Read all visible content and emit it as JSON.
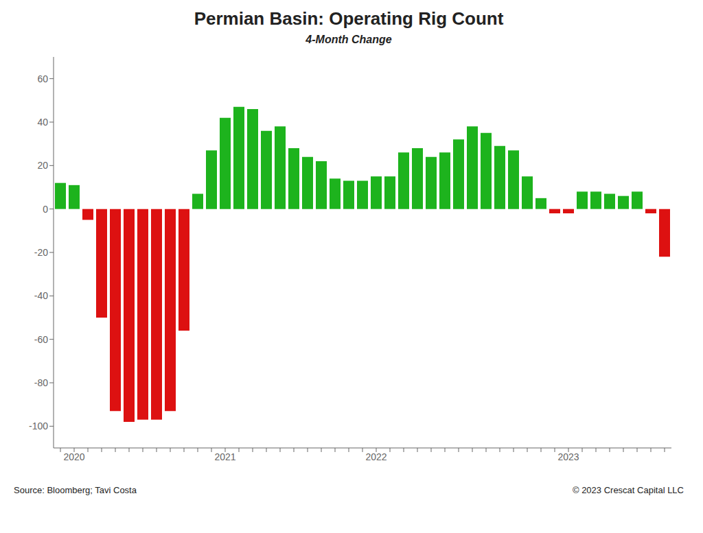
{
  "chart_data": {
    "type": "bar",
    "title": "Permian Basin: Operating Rig Count",
    "subtitle": "4-Month Change",
    "annotations": [
      "Source: Bloomberg; Tavi Costa",
      "© 2023 Crescat Capital LLC"
    ],
    "categories": [
      null,
      "2020",
      null,
      null,
      null,
      null,
      null,
      null,
      null,
      null,
      null,
      null,
      "2021",
      null,
      null,
      null,
      null,
      null,
      null,
      null,
      null,
      null,
      null,
      "2022",
      null,
      null,
      null,
      null,
      null,
      null,
      null,
      null,
      null,
      null,
      null,
      null,
      null,
      "2023",
      null,
      null,
      null,
      null,
      null,
      null,
      null
    ],
    "values": [
      12,
      11,
      -5,
      -50,
      -93,
      -98,
      -97,
      -97,
      -93,
      -56,
      7,
      27,
      42,
      47,
      46,
      36,
      38,
      28,
      24,
      22,
      14,
      13,
      13,
      15,
      15,
      26,
      28,
      24,
      26,
      32,
      38,
      35,
      29,
      27,
      15,
      5,
      -2,
      -2,
      8,
      8,
      7,
      6,
      8,
      -2,
      -22
    ],
    "colors": [
      "#1db31d",
      "#1db31d",
      "#dd1111",
      "#dd1111",
      "#dd1111",
      "#dd1111",
      "#dd1111",
      "#dd1111",
      "#dd1111",
      "#dd1111",
      "#1db31d",
      "#1db31d",
      "#1db31d",
      "#1db31d",
      "#1db31d",
      "#1db31d",
      "#1db31d",
      "#1db31d",
      "#1db31d",
      "#1db31d",
      "#1db31d",
      "#1db31d",
      "#1db31d",
      "#1db31d",
      "#1db31d",
      "#1db31d",
      "#1db31d",
      "#1db31d",
      "#1db31d",
      "#1db31d",
      "#1db31d",
      "#1db31d",
      "#1db31d",
      "#1db31d",
      "#1db31d",
      "#1db31d",
      "#dd1111",
      "#dd1111",
      "#1db31d",
      "#1db31d",
      "#1db31d",
      "#1db31d",
      "#1db31d",
      "#dd1111",
      "#dd1111"
    ],
    "ylim": [
      -110,
      70
    ],
    "yticks": [
      -100,
      -80,
      -60,
      -40,
      -20,
      0,
      20,
      40,
      60
    ],
    "grid": false
  }
}
